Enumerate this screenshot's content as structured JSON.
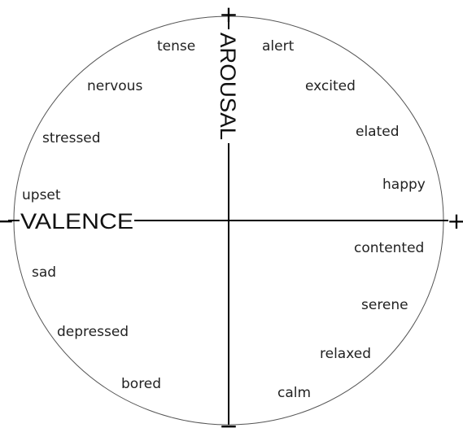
{
  "axes": {
    "vertical_label": "AROUSAL",
    "horizontal_label": "VALENCE",
    "top_sign": "+",
    "bottom_sign": "−",
    "left_sign": "−",
    "right_sign": "+"
  },
  "emotions": {
    "tense": "tense",
    "alert": "alert",
    "nervous": "nervous",
    "excited": "excited",
    "stressed": "stressed",
    "elated": "elated",
    "happy": "happy",
    "upset": "upset",
    "contented": "contented",
    "sad": "sad",
    "serene": "serene",
    "depressed": "depressed",
    "relaxed": "relaxed",
    "bored": "bored",
    "calm": "calm"
  }
}
